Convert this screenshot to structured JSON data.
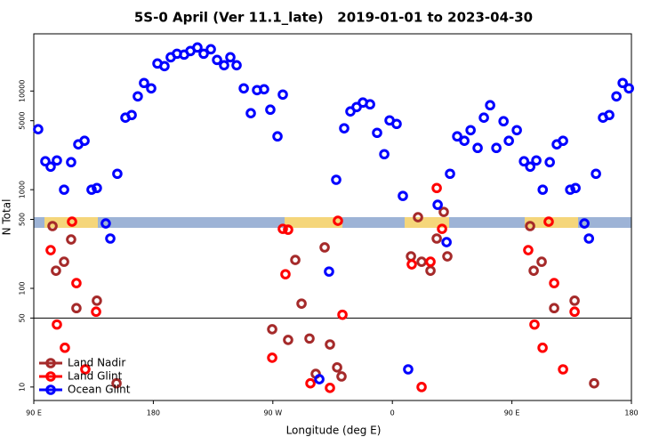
{
  "chart_data": {
    "type": "scatter",
    "title": "5S-0 April (Ver 11.1_late)   2019-01-01 to 2023-04-30",
    "x_label": "Longitude (deg E)",
    "y_label": "N Total",
    "log_y": true,
    "xlim": [
      90,
      540
    ],
    "ylim": [
      7.3,
      38000
    ],
    "xticks": [
      {
        "value": 90,
        "label": "90 E"
      },
      180,
      {
        "value": 270,
        "label": "90 W"
      },
      {
        "value": 360,
        "label": "0"
      },
      {
        "value": 450,
        "label": "90 E"
      },
      {
        "value": 540,
        "label": "180"
      }
    ],
    "yticks": [
      10,
      50,
      100,
      500,
      1000,
      5000,
      10000
    ],
    "reference_line": 50,
    "legend": "lower left",
    "series": [
      {
        "name": "Land Nadir",
        "color": "#a52a2a",
        "x": [
          104.1,
          118.1,
          106.7,
          112.8,
          122.1,
          137.5,
          152.3,
          291.6,
          286.9,
          297.6,
          309.0,
          313.0,
          318.4,
          321.7,
          302.3,
          374.0,
          379.3,
          382.0,
          393.4,
          388.7,
          398.7,
          401.4,
          463.7,
          472.4,
          466.4,
          481.8,
          497.2,
          511.9,
          269.5,
          281.5
        ],
        "values": [
          428,
          313,
          151,
          186,
          63,
          75,
          10.9,
          70,
          194,
          31,
          260,
          27,
          15.8,
          12.8,
          13.6,
          211,
          526,
          186,
          320,
          151,
          595,
          211,
          428,
          186,
          151,
          63,
          75,
          10.9,
          38.5,
          30
        ]
      },
      {
        "name": "Land Glint",
        "color": "#ff0000",
        "x": [
          102.7,
          107.4,
          113.4,
          118.8,
          122.1,
          128.8,
          136.9,
          277.5,
          281.5,
          279.5,
          269.5,
          298.3,
          313.0,
          319.0,
          322.4,
          374.6,
          388.7,
          382.0,
          393.4,
          397.4,
          462.3,
          467.0,
          473.1,
          477.7,
          481.8,
          488.5,
          497.2
        ],
        "values": [
          244,
          43,
          25,
          474,
          113,
          15.1,
          58,
          401,
          393,
          139,
          19.8,
          10.9,
          9.8,
          484,
          54,
          175,
          186,
          10,
          1040,
          401,
          244,
          43,
          25,
          474,
          113,
          15.1,
          58
        ]
      },
      {
        "name": "Ocean Glint",
        "color": "#0000ff",
        "x": [
          93.3,
          98.7,
          102.7,
          107.4,
          112.8,
          118.1,
          123.5,
          128.2,
          133.5,
          137.5,
          144.2,
          147.6,
          152.9,
          159.0,
          163.7,
          168.3,
          173.0,
          178.4,
          183.1,
          188.4,
          193.1,
          197.8,
          203.2,
          207.9,
          213.2,
          217.9,
          223.3,
          228.0,
          233.3,
          238.0,
          242.7,
          248.1,
          253.4,
          258.1,
          263.4,
          268.1,
          273.5,
          277.5,
          317.7,
          323.7,
          328.4,
          333.1,
          337.8,
          343.2,
          348.5,
          353.9,
          357.9,
          363.2,
          367.9,
          394.1,
          400.8,
          403.4,
          408.8,
          414.2,
          418.9,
          424.2,
          428.9,
          433.6,
          438.3,
          443.7,
          447.7,
          453.7,
          459.1,
          463.8,
          468.4,
          473.2,
          478.5,
          483.8,
          488.5,
          493.9,
          497.9,
          504.6,
          508.0,
          513.3,
          518.6,
          523.3,
          528.7,
          533.4,
          538.1,
          305.0,
          312.3,
          371.9
        ],
        "values": [
          4100,
          1940,
          1710,
          1980,
          1000,
          1900,
          2880,
          3130,
          1000,
          1040,
          455,
          320,
          1450,
          5370,
          5710,
          8830,
          12060,
          10640,
          19010,
          17870,
          21980,
          23880,
          23390,
          25420,
          27620,
          23880,
          26500,
          20660,
          18250,
          21980,
          18250,
          10640,
          5960,
          10210,
          10420,
          6470,
          3470,
          9200,
          1260,
          4190,
          6210,
          6880,
          7640,
          7330,
          3770,
          2290,
          5040,
          4640,
          865,
          703,
          294,
          1450,
          3470,
          3130,
          4010,
          2650,
          5370,
          7180,
          2650,
          4940,
          3130,
          4010,
          1940,
          1710,
          1980,
          1000,
          1900,
          2880,
          3130,
          1000,
          1040,
          455,
          320,
          1450,
          5370,
          5710,
          8830,
          12060,
          10640,
          12,
          148,
          15.1
        ]
      }
    ]
  }
}
